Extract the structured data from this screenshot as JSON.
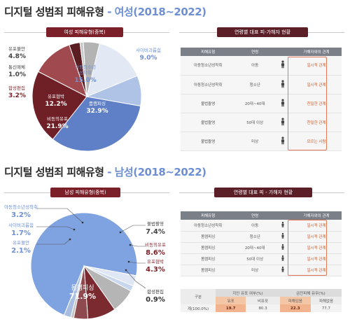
{
  "colors": {
    "accent_blue": "#6e8fd1",
    "dark_red": "#7b1f28",
    "mid_red": "#a04a50",
    "light_blue": "#dfe8f5",
    "gray": "#b9b9b9",
    "highlight_orange": "#e37a56"
  },
  "sections": [
    {
      "title_main": "디지털 성범죄 피해유형",
      "title_sub": "- 여성(2018~2022)",
      "chart_tag": "여성 피해유형(중복)",
      "table_tag": "연령별 대표 피-가해자 현황"
    },
    {
      "title_main": "디지털 성범죄 피해유형",
      "title_sub": "- 남성(2018~2022)",
      "chart_tag": "남성 피해유형(중복)",
      "table_tag": "연령별 대표 피 - 가해자 현황"
    }
  ],
  "chart_data": [
    {
      "type": "pie",
      "title": "여성 피해유형(중복)",
      "unit": "%",
      "slices": [
        {
          "label": "몸캠피싱",
          "value": 32.9,
          "color": "#5f80c6"
        },
        {
          "label": "비동의유포",
          "value": 21.9,
          "color": "#6f1f26"
        },
        {
          "label": "유포협박",
          "value": 12.2,
          "color": "#a04a50"
        },
        {
          "label": "합성편집",
          "value": 3.2,
          "color": "#5a1d22"
        },
        {
          "label": "통신매체이용음란",
          "value": 1.0,
          "color": "#c9c9c9"
        },
        {
          "label": "유포불안",
          "value": 4.8,
          "color": "#b3b3b3"
        },
        {
          "label": "아동청소년성착취",
          "value": 15.0,
          "color": "#e2e9f5"
        },
        {
          "label": "사이버괴롭힘",
          "value": 9.0,
          "color": "#aec3e6"
        }
      ],
      "labels": [
        {
          "name": "유포불안",
          "value": "4.8%"
        },
        {
          "name": "통신매체",
          "value": "1.0%"
        },
        {
          "name": "합성편집",
          "value": "3.2%"
        },
        {
          "name": "유포협박",
          "value": "12.2%"
        },
        {
          "name": "비동의유포",
          "value": "21.9%"
        },
        {
          "name": "몸캠피싱",
          "value": "32.9%"
        },
        {
          "name": "아동청소년\n성착취",
          "value": "15.0%"
        },
        {
          "name": "사이버괴롭힘",
          "value": "9.0%"
        }
      ]
    },
    {
      "type": "pie",
      "title": "남성 피해유형(중복)",
      "unit": "%",
      "slices": [
        {
          "label": "몸캠피싱",
          "value": 71.9,
          "color": "#7fa2e0"
        },
        {
          "label": "아동청소년성착취",
          "value": 3.2,
          "color": "#dfe7f4"
        },
        {
          "label": "사이버괴롭힘",
          "value": 1.7,
          "color": "#c9d7ee"
        },
        {
          "label": "불법촬영",
          "value": 7.4,
          "color": "#b5b5b5"
        },
        {
          "label": "비동의유포",
          "value": 8.6,
          "color": "#7b2a2f"
        },
        {
          "label": "유포협박",
          "value": 4.3,
          "color": "#8e4a4e"
        },
        {
          "label": "합성편집",
          "value": 0.9,
          "color": "#c2c2c2"
        },
        {
          "label": "유포불안",
          "value": 2.1,
          "color": "#a9bde3"
        }
      ],
      "labels": [
        {
          "name": "아동청소년성착취",
          "value": "3.2%"
        },
        {
          "name": "사이버괴롭힘",
          "value": "1.7%"
        },
        {
          "name": "유포불안",
          "value": "2.1%"
        },
        {
          "name": "몸캠피싱",
          "value": "71.9%"
        },
        {
          "name": "불법촬영",
          "value": "7.4%"
        },
        {
          "name": "비동의유포",
          "value": "8.6%"
        },
        {
          "name": "유포협박",
          "value": "4.3%"
        },
        {
          "name": "합성편집",
          "value": "0.9%"
        }
      ]
    }
  ],
  "table_top": {
    "headers": [
      "피해유형",
      "연령",
      "",
      "가해자와의 관계"
    ],
    "rows": [
      [
        "아동청소년성착취",
        "아동",
        "",
        "일시적 관계"
      ],
      [
        "아동청소년성착취",
        "청소년",
        "",
        "일시적 관계"
      ],
      [
        "불법촬영",
        "20대~40대",
        "",
        "친밀한 관계"
      ],
      [
        "불법촬영",
        "50대 이상",
        "",
        "친밀한 관계"
      ],
      [
        "불법촬영",
        "미상",
        "",
        "모르는 사람"
      ]
    ]
  },
  "table_bottom": {
    "headers": [
      "피해유형",
      "연령",
      "",
      "가해자와의 관계"
    ],
    "rows": [
      [
        "아동청소년성착취",
        "아동",
        "",
        "일시적 관계"
      ],
      [
        "몸캠피싱",
        "청소년",
        "",
        "일시적 관계"
      ],
      [
        "몸캠피싱",
        "20대~40대",
        "",
        "일시적 관계"
      ],
      [
        "몸캠피싱",
        "50대 이상",
        "",
        "일시적 관계"
      ],
      [
        "몸캠피싱",
        "미상",
        "",
        "일시적 관계"
      ]
    ]
  },
  "stats_table": {
    "head_col": "구분",
    "group1": "지인 유포 여부(%)",
    "group2": "금전피해 유무(%)",
    "sub": [
      "유포",
      "비유포",
      "피해있음",
      "피해없음"
    ],
    "row_label": "계(100.0%)",
    "values": [
      "19.7",
      "80.3",
      "22.3",
      "77.7"
    ]
  }
}
